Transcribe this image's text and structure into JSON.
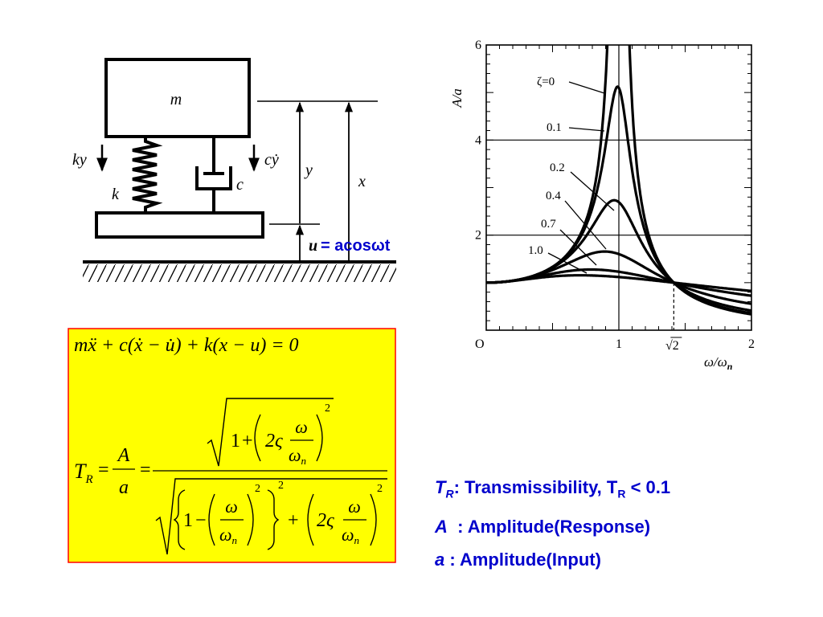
{
  "diagram": {
    "mass_label": "m",
    "spring_force_label": "ky",
    "spring_label": "k",
    "damper_force_label": "cẏ",
    "damper_label": "c",
    "y_label": "y",
    "x_label": "x",
    "u_label": "u",
    "input_text": "= acosωt"
  },
  "formula": {
    "background": "#ffff00",
    "border": "#ff0000",
    "equation_of_motion": "mẍ + c(ẋ − u̇) + k(x − u) = 0",
    "tr_lhs": "T",
    "tr_sub": "R",
    "ratio_num": "A",
    "ratio_den": "a",
    "one": "1",
    "two_zeta": "2ς",
    "omega": "ω",
    "omega_n": "ω",
    "omega_n_sub": "n",
    "exp": "2"
  },
  "legend": {
    "color": "#0000cc",
    "line1_sym": "T",
    "line1_sub": "R",
    "line1_text": ": Transmissibility, T",
    "line1_sub2": "R",
    "line1_tail": " < 0.1",
    "line2_sym": "A",
    "line2_text": "  : Amplitude(Response)",
    "line3_sym": "a",
    "line3_text": " : Amplitude(Input)"
  },
  "chart_data": {
    "type": "line",
    "xlabel": "ω/ωn",
    "ylabel": "A/a",
    "xlim": [
      0,
      2
    ],
    "ylim": [
      0,
      6
    ],
    "x_ticks": [
      "O",
      "1",
      "√2",
      "2"
    ],
    "y_ticks": [
      "2",
      "4",
      "6"
    ],
    "grid": true,
    "series": [
      {
        "name": "ζ=0",
        "zeta": 0
      },
      {
        "name": "0.1",
        "zeta": 0.1
      },
      {
        "name": "0.2",
        "zeta": 0.2
      },
      {
        "name": "0.4",
        "zeta": 0.4
      },
      {
        "name": "0.7",
        "zeta": 0.7
      },
      {
        "name": "1.0",
        "zeta": 1.0
      }
    ]
  }
}
